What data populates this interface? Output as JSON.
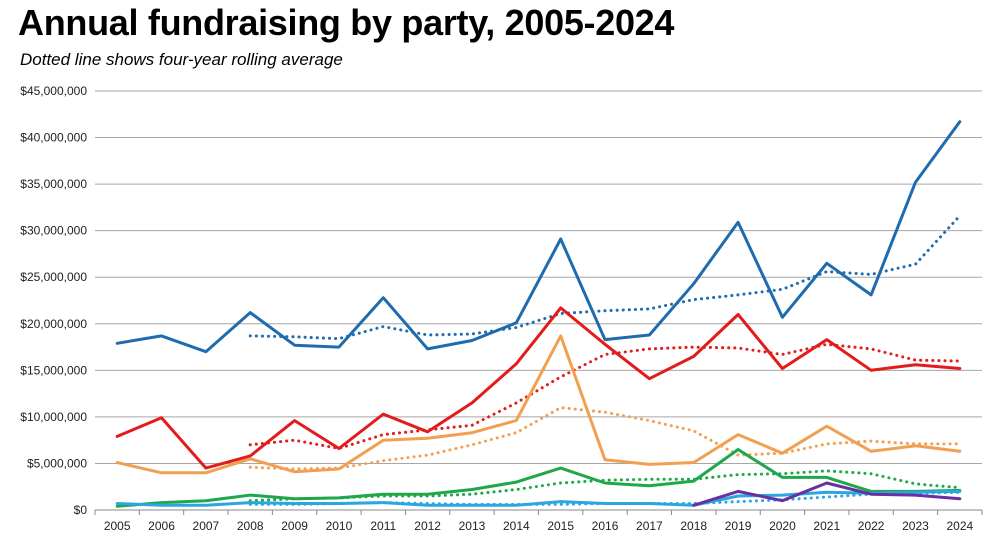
{
  "chart_data": {
    "type": "line",
    "title": "Annual fundraising by party, 2005-2024",
    "subtitle": "Dotted line shows four-year rolling average",
    "x": [
      "2005",
      "2006",
      "2007",
      "2008",
      "2009",
      "2010",
      "2011",
      "2012",
      "2013",
      "2014",
      "2015",
      "2016",
      "2017",
      "2018",
      "2019",
      "2020",
      "2021",
      "2022",
      "2023",
      "2024"
    ],
    "ylim": [
      0,
      45000000
    ],
    "yticks": [
      0,
      5000000,
      10000000,
      15000000,
      20000000,
      25000000,
      30000000,
      35000000,
      40000000,
      45000000
    ],
    "ytick_labels": [
      "$0",
      "$5,000,000",
      "$10,000,000",
      "$15,000,000",
      "$20,000,000",
      "$25,000,000",
      "$30,000,000",
      "$35,000,000",
      "$40,000,000",
      "$45,000,000"
    ],
    "grid": true,
    "series": [
      {
        "color": "#1f6bb0",
        "style": "solid",
        "values": [
          17900000,
          18700000,
          17000000,
          21200000,
          17700000,
          17500000,
          22800000,
          17300000,
          18200000,
          20100000,
          29100000,
          18300000,
          18800000,
          24300000,
          30900000,
          20700000,
          26500000,
          23100000,
          35200000,
          41700000
        ]
      },
      {
        "color": "#1f6bb0",
        "style": "dotted",
        "values": [
          null,
          null,
          null,
          18700000,
          18600000,
          18400000,
          19700000,
          18800000,
          18900000,
          19600000,
          21100000,
          21400000,
          21600000,
          22600000,
          23100000,
          23700000,
          25600000,
          25300000,
          26400000,
          31600000
        ]
      },
      {
        "color": "#e31b1b",
        "style": "solid",
        "values": [
          7900000,
          9900000,
          4500000,
          5800000,
          9600000,
          6600000,
          10300000,
          8400000,
          11500000,
          15700000,
          21700000,
          17800000,
          14100000,
          16500000,
          21000000,
          15200000,
          18300000,
          15000000,
          15600000,
          15200000
        ]
      },
      {
        "color": "#e31b1b",
        "style": "dotted",
        "values": [
          null,
          null,
          null,
          7000000,
          7500000,
          6600000,
          8100000,
          8600000,
          9100000,
          11500000,
          14300000,
          16700000,
          17300000,
          17500000,
          17400000,
          16700000,
          17800000,
          17300000,
          16100000,
          16000000
        ]
      },
      {
        "color": "#f0a050",
        "style": "solid",
        "values": [
          5100000,
          4000000,
          4000000,
          5500000,
          4100000,
          4400000,
          7500000,
          7700000,
          8300000,
          9600000,
          18700000,
          5400000,
          4900000,
          5100000,
          8100000,
          6100000,
          9000000,
          6300000,
          6900000,
          6300000
        ]
      },
      {
        "color": "#f0a050",
        "style": "dotted",
        "values": [
          null,
          null,
          null,
          4600000,
          4400000,
          4500000,
          5300000,
          5900000,
          7000000,
          8300000,
          11000000,
          10500000,
          9600000,
          8500000,
          5900000,
          6100000,
          7100000,
          7400000,
          7100000,
          7100000
        ]
      },
      {
        "color": "#1fa84a",
        "style": "solid",
        "values": [
          400000,
          800000,
          1000000,
          1600000,
          1200000,
          1300000,
          1700000,
          1700000,
          2200000,
          3000000,
          4500000,
          2900000,
          2600000,
          3100000,
          6500000,
          3500000,
          3500000,
          2000000,
          2000000,
          2100000
        ]
      },
      {
        "color": "#1fa84a",
        "style": "dotted",
        "values": [
          null,
          null,
          null,
          1000000,
          1200000,
          1300000,
          1500000,
          1500000,
          1700000,
          2200000,
          2900000,
          3200000,
          3300000,
          3300000,
          3800000,
          3900000,
          4200000,
          3900000,
          2800000,
          2400000
        ]
      },
      {
        "color": "#2aa6e0",
        "style": "solid",
        "values": [
          700000,
          500000,
          500000,
          800000,
          700000,
          700000,
          800000,
          500000,
          500000,
          500000,
          900000,
          700000,
          700000,
          500000,
          1500000,
          1600000,
          1900000,
          1800000,
          1900000,
          2000000
        ]
      },
      {
        "color": "#2aa6e0",
        "style": "dotted",
        "values": [
          null,
          null,
          null,
          600000,
          600000,
          700000,
          800000,
          700000,
          600000,
          600000,
          600000,
          700000,
          700000,
          700000,
          900000,
          1100000,
          1400000,
          1700000,
          1800000,
          1900000
        ]
      },
      {
        "color": "#6a2fa0",
        "style": "solid",
        "values": [
          null,
          null,
          null,
          null,
          null,
          null,
          null,
          null,
          null,
          null,
          null,
          null,
          null,
          500000,
          2000000,
          1000000,
          2900000,
          1700000,
          1600000,
          1200000
        ]
      }
    ]
  }
}
